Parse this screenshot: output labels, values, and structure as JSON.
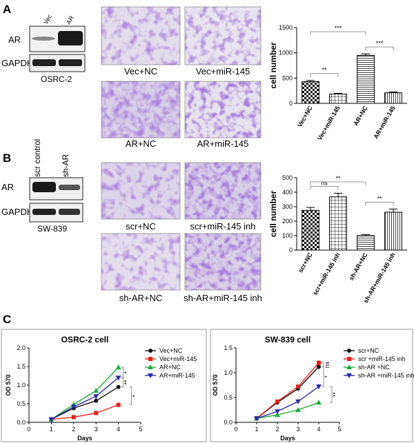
{
  "panel_a": {
    "label": "A",
    "blot": {
      "lanes": [
        "Vec",
        "AR"
      ],
      "rows": [
        "AR",
        "GAPDH"
      ],
      "cell_line": "OSRC-2"
    },
    "images": [
      "Vec+NC",
      "Vec+miR-145",
      "AR+NC",
      "AR+miR-145"
    ]
  },
  "panel_b": {
    "label": "B",
    "blot": {
      "lanes": [
        "scr control",
        "sh-AR"
      ],
      "rows": [
        "AR",
        "GAPDH"
      ],
      "cell_line": "SW-839"
    },
    "images": [
      "scr+NC",
      "scr+miR-145 inh",
      "sh-AR+NC",
      "sh-AR+miR-145 inh"
    ]
  },
  "panel_c": {
    "label": "C"
  },
  "chart_data": [
    {
      "type": "bar",
      "panel": "A",
      "ylabel": "cell number",
      "ylim": [
        0,
        1500
      ],
      "yticks": [
        0,
        500,
        1000,
        1500
      ],
      "categories": [
        "Vec+NC",
        "Vec+miR-145",
        "AR+NC",
        "AR+miR-145"
      ],
      "values": [
        430,
        185,
        950,
        210
      ],
      "errors": [
        25,
        15,
        30,
        15
      ],
      "patterns": [
        "checker",
        "grid",
        "hlines",
        "vlines"
      ],
      "significance": [
        {
          "from": 0,
          "to": 1,
          "label": "**"
        },
        {
          "from": 0,
          "to": 2,
          "label": "***"
        },
        {
          "from": 2,
          "to": 3,
          "label": "***"
        }
      ]
    },
    {
      "type": "bar",
      "panel": "B",
      "ylabel": "cell number",
      "ylim": [
        0,
        500
      ],
      "yticks": [
        0,
        100,
        200,
        300,
        400,
        500
      ],
      "categories": [
        "scr+NC",
        "scr+miR-145 inh",
        "sh-AR+NC",
        "sh-AR+miR-145 inh"
      ],
      "values": [
        275,
        368,
        100,
        262
      ],
      "errors": [
        20,
        25,
        8,
        22
      ],
      "patterns": [
        "checker",
        "grid",
        "hlines",
        "vlines"
      ],
      "significance": [
        {
          "from": 0,
          "to": 1,
          "label": "ns"
        },
        {
          "from": 0,
          "to": 2,
          "label": "**"
        },
        {
          "from": 2,
          "to": 3,
          "label": "**"
        }
      ]
    },
    {
      "type": "line",
      "panel": "C",
      "title": "OSRC-2 cell",
      "xlabel": "Days",
      "ylabel": "OD 570",
      "xlim": [
        0,
        5
      ],
      "ylim": [
        0,
        2.0
      ],
      "xticks": [
        0,
        1,
        2,
        3,
        4,
        5
      ],
      "yticks": [
        0.0,
        0.5,
        1.0,
        1.5,
        2.0
      ],
      "x": [
        1,
        2,
        3,
        4
      ],
      "series": [
        {
          "name": "Vec+NC",
          "color": "#111111",
          "marker": "circle",
          "values": [
            0.08,
            0.38,
            0.58,
            0.95
          ],
          "err_last": 0.04
        },
        {
          "name": "Vec+miR-145",
          "color": "#e8201c",
          "marker": "square",
          "values": [
            0.08,
            0.14,
            0.25,
            0.47
          ],
          "err_last": 0.03
        },
        {
          "name": "AR+NC",
          "color": "#1faa3e",
          "marker": "triangle",
          "values": [
            0.08,
            0.48,
            0.85,
            1.48
          ],
          "err_last": 0.07
        },
        {
          "name": "AR+miR-145",
          "color": "#2b2ba8",
          "marker": "triangle-down",
          "values": [
            0.08,
            0.42,
            0.7,
            1.2
          ],
          "err_last": 0.05
        }
      ],
      "significance": [
        "*",
        "**",
        "*"
      ]
    },
    {
      "type": "line",
      "panel": "C",
      "title": "SW-839 cell",
      "xlabel": "Days",
      "ylabel": "OD 570",
      "xlim": [
        0,
        5
      ],
      "ylim": [
        0,
        1.5
      ],
      "xticks": [
        0,
        1,
        2,
        3,
        4,
        5
      ],
      "yticks": [
        0.0,
        0.5,
        1.0,
        1.5
      ],
      "x": [
        1,
        2,
        3,
        4
      ],
      "series": [
        {
          "name": "scr+NC",
          "color": "#111111",
          "marker": "circle",
          "values": [
            0.08,
            0.4,
            0.68,
            1.12
          ],
          "err_last": 0.05
        },
        {
          "name": "scr +miR-145 inh",
          "color": "#e8201c",
          "marker": "square",
          "values": [
            0.08,
            0.42,
            0.72,
            1.2
          ],
          "err_last": 0.05
        },
        {
          "name": "sh-AR +NC",
          "color": "#1faa3e",
          "marker": "triangle",
          "values": [
            0.08,
            0.15,
            0.25,
            0.4
          ],
          "err_last": 0.04
        },
        {
          "name": "sh-AR +miR-145 inh",
          "color": "#2b2ba8",
          "marker": "triangle-down",
          "values": [
            0.08,
            0.22,
            0.42,
            0.72
          ],
          "err_last": 0.05
        }
      ],
      "significance": [
        "ns",
        "*",
        "**"
      ]
    }
  ]
}
